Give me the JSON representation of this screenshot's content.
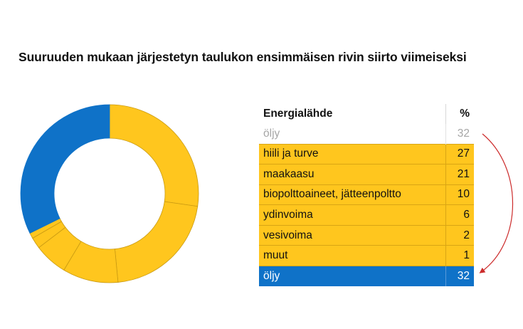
{
  "title": "Suuruuden mukaan järjestetyn taulukon ensimmäisen rivin siirto viimeiseksi",
  "colors": {
    "blue": "#0f72c8",
    "yellow": "#ffc61e",
    "arrow": "#cc2b2b"
  },
  "table": {
    "header": {
      "source": "Energialähde",
      "percent": "%"
    },
    "faded_row": {
      "label": "öljy",
      "value": "32"
    },
    "rows": [
      {
        "label": "hiili ja turve",
        "value": "27"
      },
      {
        "label": "maakaasu",
        "value": "21"
      },
      {
        "label": "biopolttoaineet, jätteenpoltto",
        "value": "10"
      },
      {
        "label": "ydinvoima",
        "value": "6"
      },
      {
        "label": "vesivoima",
        "value": "2"
      },
      {
        "label": "muut",
        "value": "1"
      }
    ],
    "moved_row": {
      "label": "öljy",
      "value": "32"
    }
  },
  "chart_data": {
    "type": "pie",
    "donut": true,
    "categories": [
      "hiili ja turve",
      "maakaasu",
      "biopolttoaineet, jätteenpoltto",
      "ydinvoima",
      "vesivoima",
      "muut",
      "öljy"
    ],
    "values": [
      27,
      21,
      10,
      6,
      2,
      1,
      32
    ],
    "colors": [
      "#ffc61e",
      "#ffc61e",
      "#ffc61e",
      "#ffc61e",
      "#ffc61e",
      "#ffc61e",
      "#0f72c8"
    ],
    "start": "top",
    "direction": "clockwise",
    "legend": "none"
  }
}
